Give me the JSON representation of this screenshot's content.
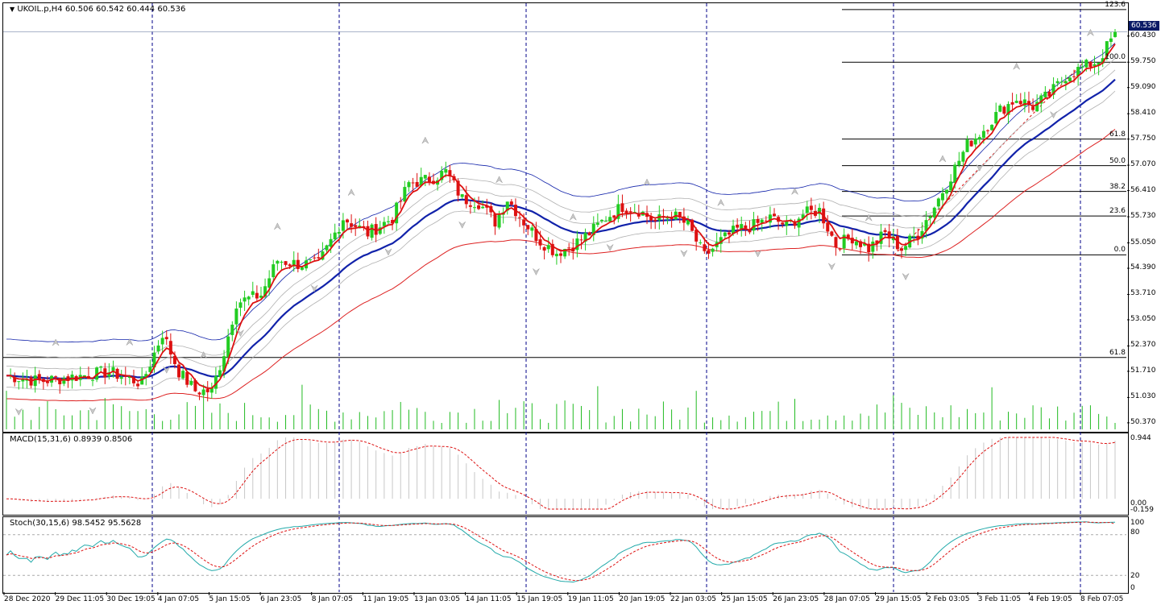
{
  "header": {
    "symbol_line": "UKOIL.p,H4  60.506 60.542 60.444 60.536",
    "macd_line": "MACD(15,31,6) 0.8939 0.8506",
    "stoch_line": "Stoch(30,15,6) 98.5452 95.5628"
  },
  "price_axis": {
    "current_price": "60.536",
    "ticks": [
      "60.430",
      "59.750",
      "59.090",
      "58.410",
      "57.750",
      "57.070",
      "56.410",
      "55.730",
      "55.050",
      "54.390",
      "53.710",
      "53.050",
      "52.370",
      "51.710",
      "51.030",
      "50.370"
    ]
  },
  "macd_axis": {
    "ticks": [
      "0.944",
      "0.00",
      "-0.159"
    ]
  },
  "stoch_axis": {
    "ticks": [
      "100",
      "80",
      "20",
      "0"
    ]
  },
  "time_axis": {
    "labels": [
      "28 Dec 2020",
      "29 Dec 11:05",
      "30 Dec 19:05",
      "4 Jan 07:05",
      "5 Jan 15:05",
      "6 Jan 23:05",
      "8 Jan 07:05",
      "11 Jan 19:05",
      "13 Jan 03:05",
      "14 Jan 11:05",
      "15 Jan 19:05",
      "19 Jan 11:05",
      "20 Jan 19:05",
      "22 Jan 03:05",
      "25 Jan 15:05",
      "26 Jan 23:05",
      "28 Jan 07:05",
      "29 Jan 15:05",
      "2 Feb 03:05",
      "3 Feb 11:05",
      "4 Feb 19:05",
      "8 Feb 07:05"
    ]
  },
  "fibonacci": {
    "labels": [
      "123.6",
      "100.0",
      "61.8",
      "50.0",
      "38.2",
      "23.6",
      "0.0"
    ],
    "prices": [
      61.12,
      59.75,
      57.75,
      57.06,
      56.39,
      55.75,
      54.74
    ]
  },
  "fibonacci_old": {
    "label": "61.8",
    "price": 52.07
  },
  "colors": {
    "bull": "#22cc22",
    "bear": "#dd1111",
    "ma_fast": "#dd1111",
    "ma_mid": "#1122aa",
    "ma_slow": "#dd2222",
    "env": "#b0b0b0",
    "volume": "#22bb22",
    "macd_signal": "#dd1111",
    "macd_hist": "#c8c8c8",
    "stoch_main": "#22aaaa",
    "stoch_signal": "#dd1111"
  },
  "chart_data": [
    {
      "type": "candlestick",
      "title": "UKOIL.p,H4",
      "ylim": [
        50.2,
        61.2
      ],
      "last_price": 60.536,
      "close_keypoints": [
        [
          0,
          51.6
        ],
        [
          8,
          51.45
        ],
        [
          15,
          51.55
        ],
        [
          25,
          51.7
        ],
        [
          33,
          51.4
        ],
        [
          38,
          52.7
        ],
        [
          42,
          51.7
        ],
        [
          46,
          51.2
        ],
        [
          50,
          51.2
        ],
        [
          53,
          52.2
        ],
        [
          56,
          53.5
        ],
        [
          62,
          53.7
        ],
        [
          66,
          54.6
        ],
        [
          71,
          54.5
        ],
        [
          76,
          54.5
        ],
        [
          82,
          55.7
        ],
        [
          88,
          55.3
        ],
        [
          94,
          55.7
        ],
        [
          98,
          56.6
        ],
        [
          103,
          56.7
        ],
        [
          107,
          56.9
        ],
        [
          111,
          56.2
        ],
        [
          115,
          56.1
        ],
        [
          119,
          55.6
        ],
        [
          122,
          56.2
        ],
        [
          126,
          55.6
        ],
        [
          130,
          55.1
        ],
        [
          134,
          54.8
        ],
        [
          138,
          55.0
        ],
        [
          142,
          55.3
        ],
        [
          146,
          55.7
        ],
        [
          150,
          56.0
        ],
        [
          154,
          55.9
        ],
        [
          158,
          55.6
        ],
        [
          162,
          55.8
        ],
        [
          166,
          55.5
        ],
        [
          170,
          54.7
        ],
        [
          174,
          55.1
        ],
        [
          178,
          55.4
        ],
        [
          182,
          55.5
        ],
        [
          186,
          55.7
        ],
        [
          190,
          55.5
        ],
        [
          194,
          55.8
        ],
        [
          198,
          55.9
        ],
        [
          202,
          55.0
        ],
        [
          206,
          55.2
        ],
        [
          210,
          54.9
        ],
        [
          214,
          55.3
        ],
        [
          218,
          54.9
        ],
        [
          222,
          55.3
        ],
        [
          226,
          56.0
        ],
        [
          230,
          56.8
        ],
        [
          234,
          57.6
        ],
        [
          238,
          58.0
        ],
        [
          242,
          58.5
        ],
        [
          246,
          58.8
        ],
        [
          250,
          58.6
        ],
        [
          254,
          58.9
        ],
        [
          258,
          59.4
        ],
        [
          262,
          59.6
        ],
        [
          266,
          59.8
        ],
        [
          270,
          60.5
        ]
      ],
      "moving_averages": [
        "fast (red)",
        "mid (blue)",
        "slow (red)",
        "envelope bands (grey)"
      ],
      "volume": true
    },
    {
      "type": "bar",
      "title": "MACD(15,31,6)",
      "main": 0.8939,
      "signal": 0.8506,
      "ylim": [
        -0.159,
        0.944
      ]
    },
    {
      "type": "line",
      "title": "Stoch(30,15,6)",
      "main": 98.5452,
      "signal": 95.5628,
      "ylim": [
        0,
        100
      ],
      "levels": [
        20,
        80
      ]
    }
  ]
}
